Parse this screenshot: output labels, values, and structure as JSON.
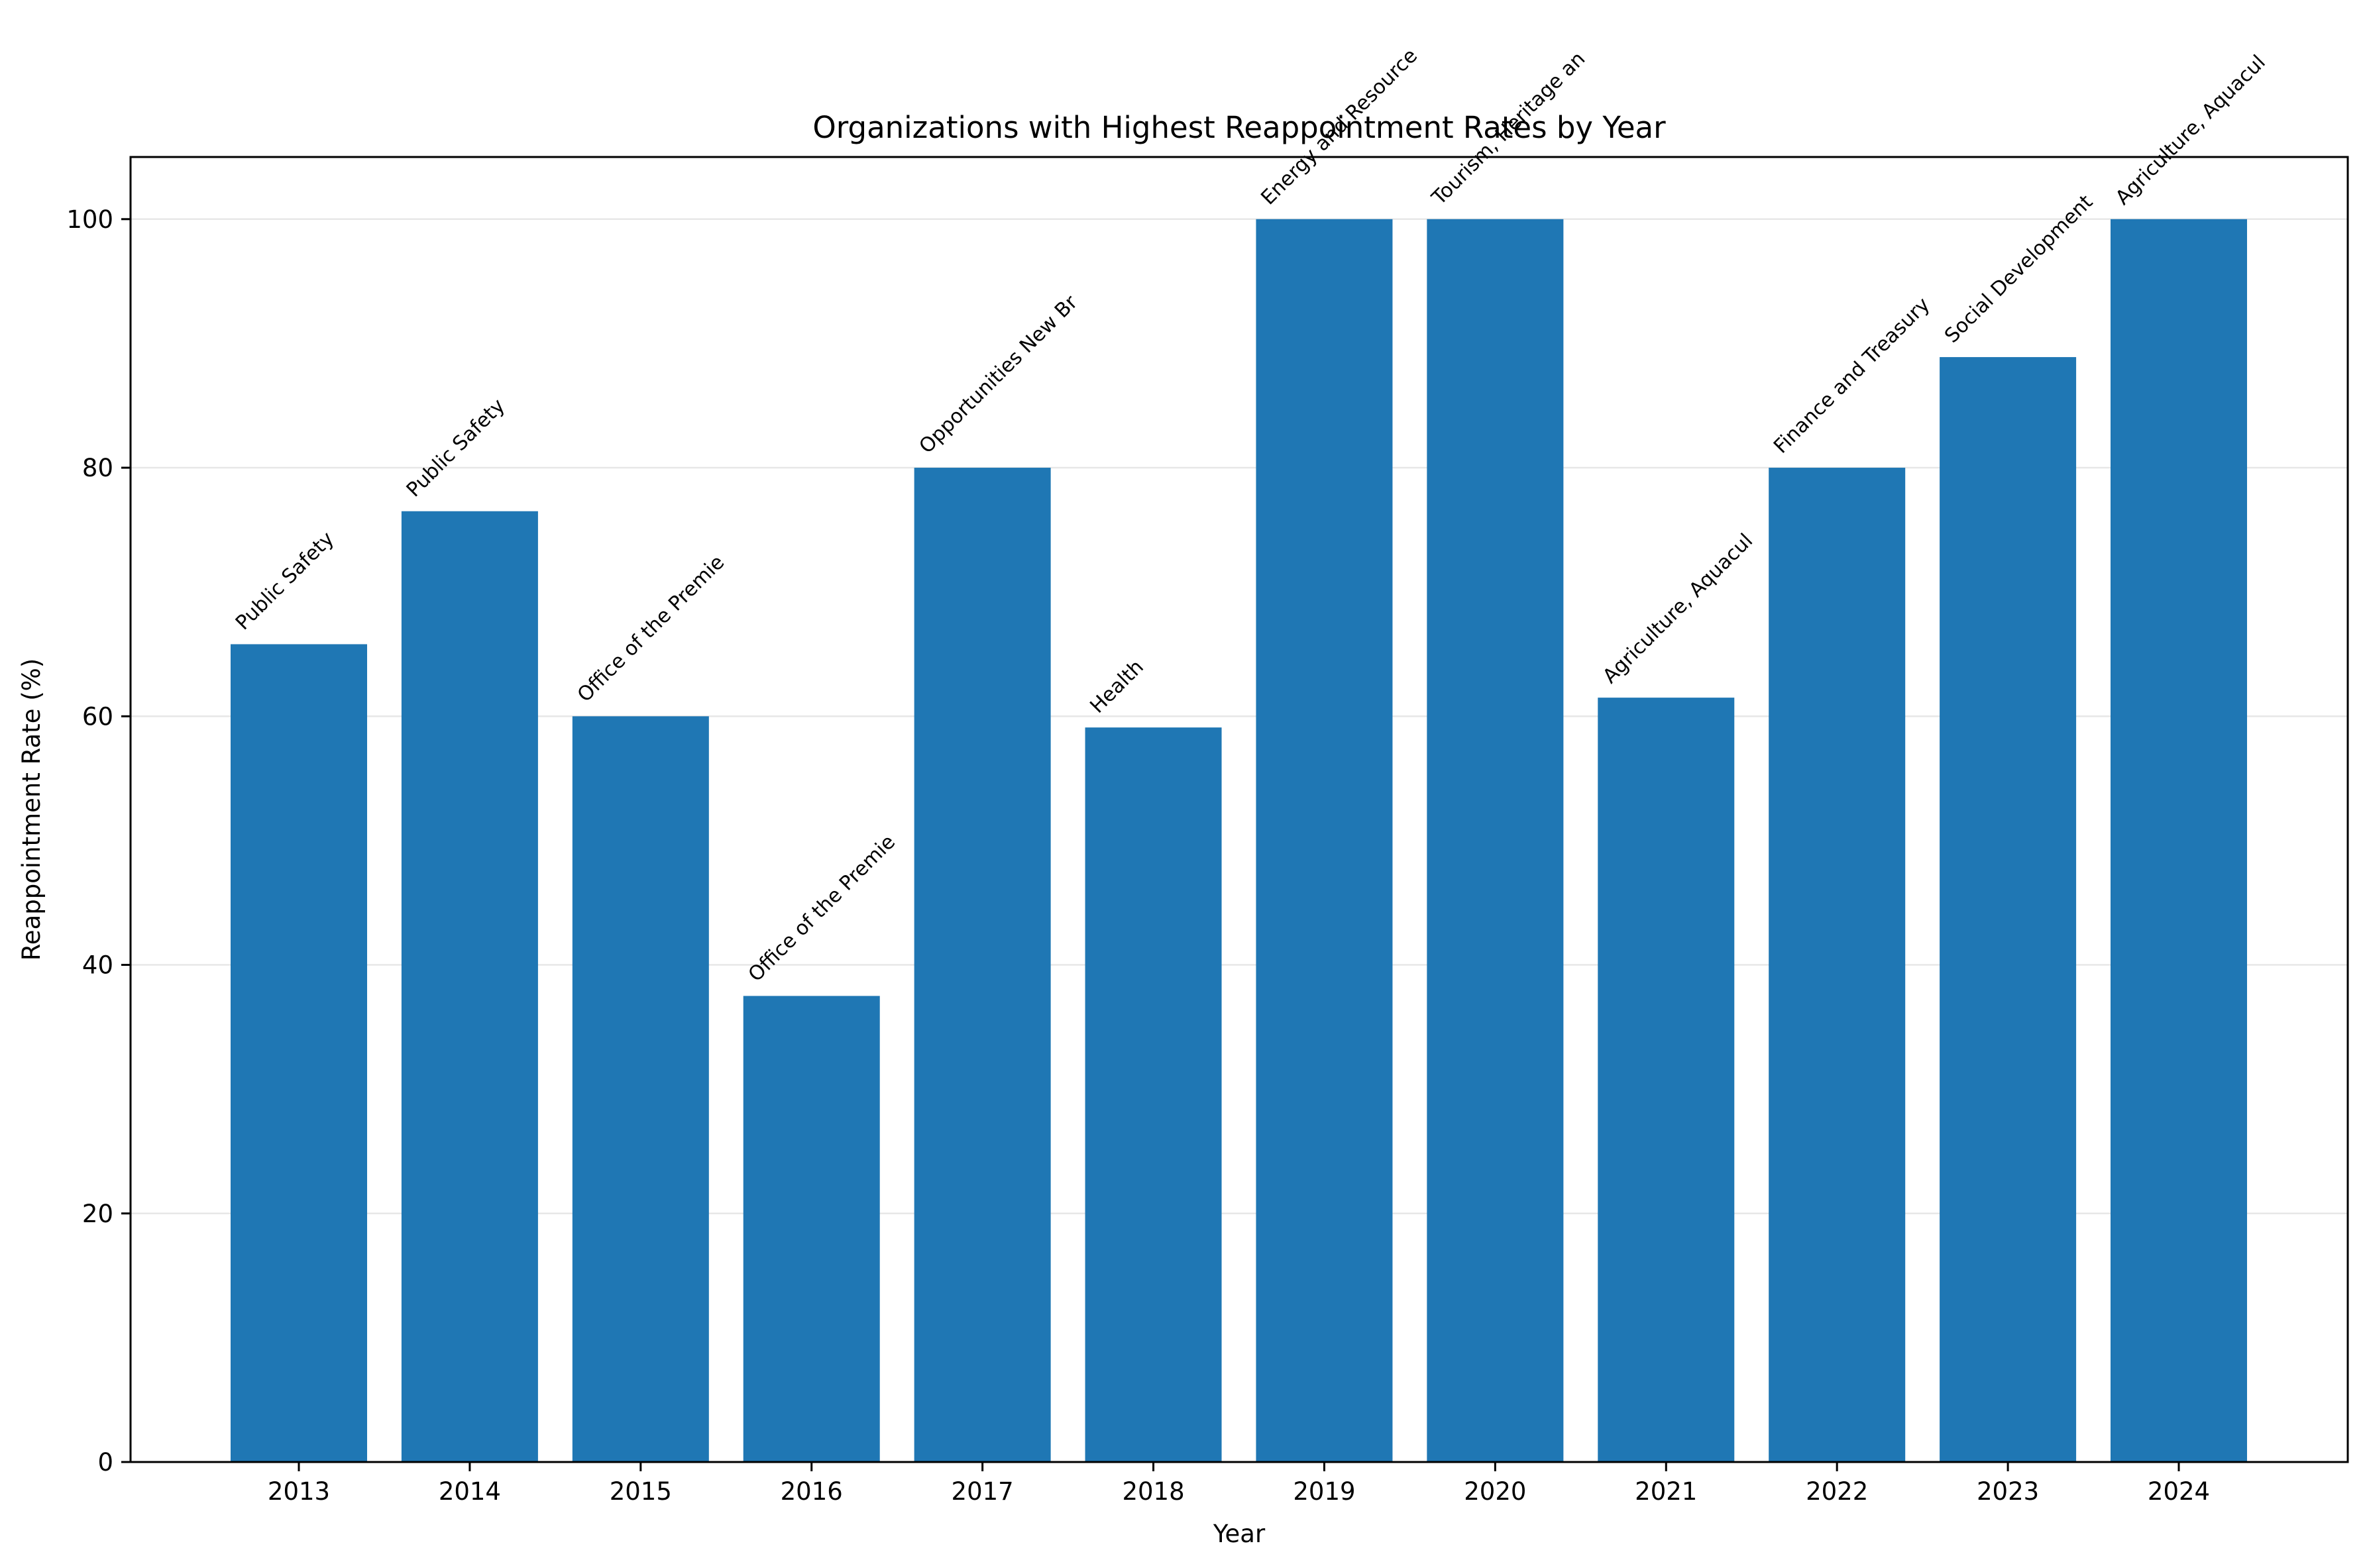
{
  "chart_data": {
    "type": "bar",
    "title": "Organizations with Highest Reappointment Rates by Year",
    "xlabel": "Year",
    "ylabel": "Reappointment Rate (%)",
    "categories": [
      "2013",
      "2014",
      "2015",
      "2016",
      "2017",
      "2018",
      "2019",
      "2020",
      "2021",
      "2022",
      "2023",
      "2024"
    ],
    "values": [
      65.8,
      76.5,
      60.0,
      37.5,
      80.0,
      59.1,
      100.0,
      100.0,
      61.5,
      80.0,
      88.9,
      100.0
    ],
    "bar_labels": [
      "Public Safety",
      "Public Safety",
      "Office of the Premie",
      "Office of the Premie",
      "Opportunities New Br",
      "Health",
      "Energy and Resource",
      "Tourism, Heritage an",
      "Agriculture, Aquacul",
      "Finance and Treasury",
      "Social Development",
      "Agriculture, Aquacul"
    ],
    "ylim": [
      0,
      105
    ],
    "yticks": [
      0,
      20,
      40,
      60,
      80,
      100
    ],
    "grid": "y",
    "legend": "none",
    "bar_color": "#1f77b4"
  }
}
